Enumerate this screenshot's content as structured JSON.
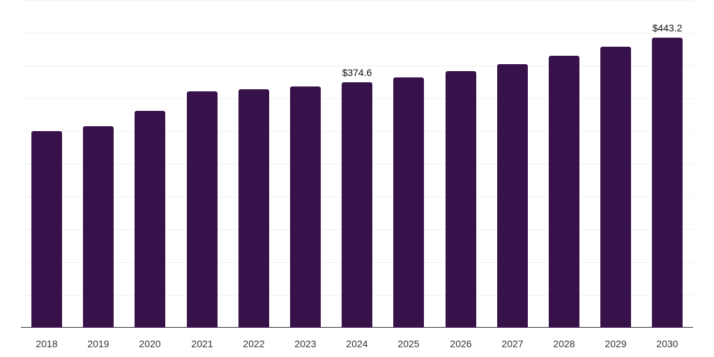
{
  "chart_data": {
    "type": "bar",
    "title": "",
    "xlabel": "",
    "ylabel": "",
    "categories": [
      "2018",
      "2019",
      "2020",
      "2021",
      "2022",
      "2023",
      "2024",
      "2025",
      "2026",
      "2027",
      "2028",
      "2029",
      "2030"
    ],
    "values": [
      300.3,
      307.8,
      331.2,
      361.0,
      364.2,
      368.5,
      374.6,
      382.0,
      391.6,
      402.2,
      415.0,
      428.8,
      443.2
    ],
    "data_labels": [
      {
        "category": "2024",
        "text": "$374.6"
      },
      {
        "category": "2030",
        "text": "$443.2"
      }
    ],
    "ylim": [
      0,
      500
    ],
    "grid": true,
    "legend": null,
    "bar_color": "#37124a"
  }
}
